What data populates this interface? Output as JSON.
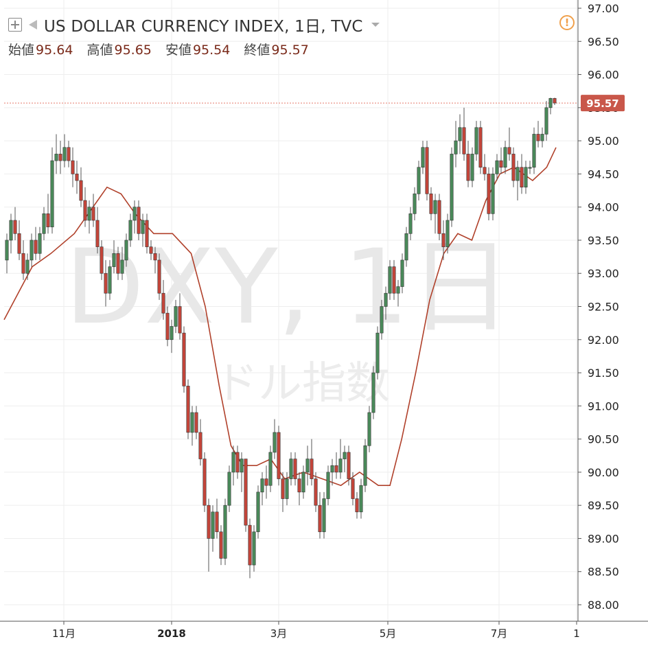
{
  "header": {
    "title": "US DOLLAR CURRENCY INDEX, 1日, TVC",
    "ohlc": [
      {
        "label": "始値",
        "value": "95.64"
      },
      {
        "label": "高値",
        "value": "95.65"
      },
      {
        "label": "安値",
        "value": "95.54"
      },
      {
        "label": "終値",
        "value": "95.57"
      }
    ],
    "alert_glyph": "!"
  },
  "watermark": {
    "symbol": "DXY, 1日",
    "description": "ドル指数"
  },
  "last_price_label": "95.57",
  "colors": {
    "up": "#4a8a5a",
    "down": "#c4453a",
    "ma": "#b0402a",
    "price_line": "#e57a6a",
    "price_label_bg": "#c9574a"
  },
  "chart_data": {
    "type": "candlestick",
    "ylim": [
      88.0,
      97.0
    ],
    "yticks": [
      "88.00",
      "88.50",
      "89.00",
      "89.50",
      "90.00",
      "90.50",
      "91.00",
      "91.50",
      "92.00",
      "92.50",
      "93.00",
      "93.50",
      "94.00",
      "94.50",
      "95.00",
      "95.50",
      "96.00",
      "96.50",
      "97.00"
    ],
    "xticks": [
      {
        "label": "11月",
        "bold": false
      },
      {
        "label": "2018",
        "bold": true
      },
      {
        "label": "3月",
        "bold": false
      },
      {
        "label": "5月",
        "bold": false
      },
      {
        "label": "7月",
        "bold": false
      },
      {
        "label": "1",
        "bold": false
      }
    ],
    "last_price": 95.57,
    "ma_path": [
      [
        92.3,
        0
      ],
      [
        92.7,
        6
      ],
      [
        93.1,
        12
      ],
      [
        93.3,
        20
      ],
      [
        93.6,
        30
      ],
      [
        94.1,
        40
      ],
      [
        94.3,
        44
      ],
      [
        94.2,
        50
      ],
      [
        93.9,
        56
      ],
      [
        93.6,
        64
      ],
      [
        93.6,
        72
      ],
      [
        93.3,
        80
      ],
      [
        92.5,
        86
      ],
      [
        91.3,
        92
      ],
      [
        90.4,
        97
      ],
      [
        90.1,
        102
      ],
      [
        90.1,
        108
      ],
      [
        90.2,
        114
      ],
      [
        89.9,
        120
      ],
      [
        90.0,
        128
      ],
      [
        89.9,
        136
      ],
      [
        89.8,
        144
      ],
      [
        90.0,
        152
      ],
      [
        89.8,
        160
      ],
      [
        89.8,
        165
      ],
      [
        90.5,
        170
      ],
      [
        91.5,
        176
      ],
      [
        92.6,
        182
      ],
      [
        93.3,
        188
      ],
      [
        93.6,
        194
      ],
      [
        93.5,
        200
      ],
      [
        94.1,
        206
      ],
      [
        94.5,
        212
      ],
      [
        94.6,
        218
      ],
      [
        94.4,
        226
      ],
      [
        94.6,
        232
      ],
      [
        94.9,
        236
      ]
    ],
    "candles": [
      {
        "o": 93.2,
        "h": 93.6,
        "l": 93.0,
        "c": 93.5
      },
      {
        "o": 93.5,
        "h": 93.9,
        "l": 93.3,
        "c": 93.8
      },
      {
        "o": 93.8,
        "h": 94.0,
        "l": 93.5,
        "c": 93.6
      },
      {
        "o": 93.6,
        "h": 93.8,
        "l": 93.2,
        "c": 93.3
      },
      {
        "o": 93.3,
        "h": 93.5,
        "l": 92.9,
        "c": 93.0
      },
      {
        "o": 93.0,
        "h": 93.3,
        "l": 92.9,
        "c": 93.2
      },
      {
        "o": 93.2,
        "h": 93.6,
        "l": 93.1,
        "c": 93.5
      },
      {
        "o": 93.5,
        "h": 93.7,
        "l": 93.2,
        "c": 93.3
      },
      {
        "o": 93.3,
        "h": 93.7,
        "l": 93.2,
        "c": 93.6
      },
      {
        "o": 93.6,
        "h": 94.0,
        "l": 93.5,
        "c": 93.9
      },
      {
        "o": 93.9,
        "h": 94.2,
        "l": 93.6,
        "c": 93.7
      },
      {
        "o": 93.7,
        "h": 94.9,
        "l": 93.6,
        "c": 94.7
      },
      {
        "o": 94.7,
        "h": 95.1,
        "l": 94.5,
        "c": 94.8
      },
      {
        "o": 94.8,
        "h": 95.0,
        "l": 94.5,
        "c": 94.7
      },
      {
        "o": 94.7,
        "h": 95.1,
        "l": 94.6,
        "c": 94.9
      },
      {
        "o": 94.9,
        "h": 95.0,
        "l": 94.6,
        "c": 94.7
      },
      {
        "o": 94.7,
        "h": 94.9,
        "l": 94.3,
        "c": 94.5
      },
      {
        "o": 94.5,
        "h": 94.7,
        "l": 94.2,
        "c": 94.4
      },
      {
        "o": 94.4,
        "h": 94.6,
        "l": 94.0,
        "c": 94.1
      },
      {
        "o": 94.1,
        "h": 94.3,
        "l": 93.7,
        "c": 93.8
      },
      {
        "o": 93.8,
        "h": 94.1,
        "l": 93.6,
        "c": 94.0
      },
      {
        "o": 94.0,
        "h": 94.2,
        "l": 93.7,
        "c": 93.8
      },
      {
        "o": 93.8,
        "h": 94.0,
        "l": 93.3,
        "c": 93.4
      },
      {
        "o": 93.4,
        "h": 93.5,
        "l": 92.9,
        "c": 93.0
      },
      {
        "o": 93.0,
        "h": 93.2,
        "l": 92.5,
        "c": 92.7
      },
      {
        "o": 92.7,
        "h": 93.2,
        "l": 92.6,
        "c": 93.1
      },
      {
        "o": 93.1,
        "h": 93.5,
        "l": 93.0,
        "c": 93.3
      },
      {
        "o": 93.3,
        "h": 93.4,
        "l": 92.9,
        "c": 93.0
      },
      {
        "o": 93.0,
        "h": 93.4,
        "l": 92.9,
        "c": 93.2
      },
      {
        "o": 93.2,
        "h": 93.6,
        "l": 93.1,
        "c": 93.5
      },
      {
        "o": 93.5,
        "h": 93.9,
        "l": 93.4,
        "c": 93.8
      },
      {
        "o": 93.8,
        "h": 94.1,
        "l": 93.6,
        "c": 94.0
      },
      {
        "o": 94.0,
        "h": 94.1,
        "l": 93.5,
        "c": 93.6
      },
      {
        "o": 93.6,
        "h": 93.9,
        "l": 93.4,
        "c": 93.8
      },
      {
        "o": 93.8,
        "h": 93.9,
        "l": 93.3,
        "c": 93.4
      },
      {
        "o": 93.4,
        "h": 93.5,
        "l": 93.2,
        "c": 93.3
      },
      {
        "o": 93.3,
        "h": 93.4,
        "l": 93.0,
        "c": 93.2
      },
      {
        "o": 93.2,
        "h": 93.3,
        "l": 92.6,
        "c": 92.7
      },
      {
        "o": 92.7,
        "h": 92.9,
        "l": 92.3,
        "c": 92.4
      },
      {
        "o": 92.4,
        "h": 92.5,
        "l": 91.9,
        "c": 92.0
      },
      {
        "o": 92.0,
        "h": 92.3,
        "l": 91.8,
        "c": 92.2
      },
      {
        "o": 92.2,
        "h": 92.6,
        "l": 92.1,
        "c": 92.5
      },
      {
        "o": 92.5,
        "h": 92.7,
        "l": 92.0,
        "c": 92.1
      },
      {
        "o": 92.1,
        "h": 92.2,
        "l": 91.2,
        "c": 91.3
      },
      {
        "o": 91.3,
        "h": 91.4,
        "l": 90.5,
        "c": 90.6
      },
      {
        "o": 90.6,
        "h": 91.0,
        "l": 90.4,
        "c": 90.9
      },
      {
        "o": 90.9,
        "h": 91.0,
        "l": 90.5,
        "c": 90.6
      },
      {
        "o": 90.6,
        "h": 90.8,
        "l": 90.1,
        "c": 90.2
      },
      {
        "o": 90.2,
        "h": 90.3,
        "l": 89.4,
        "c": 89.5
      },
      {
        "o": 89.5,
        "h": 89.6,
        "l": 88.5,
        "c": 89.0
      },
      {
        "o": 89.0,
        "h": 89.5,
        "l": 88.8,
        "c": 89.4
      },
      {
        "o": 89.4,
        "h": 89.6,
        "l": 89.0,
        "c": 89.1
      },
      {
        "o": 89.1,
        "h": 89.2,
        "l": 88.6,
        "c": 88.7
      },
      {
        "o": 88.7,
        "h": 89.6,
        "l": 88.6,
        "c": 89.5
      },
      {
        "o": 89.5,
        "h": 90.1,
        "l": 89.4,
        "c": 90.0
      },
      {
        "o": 90.0,
        "h": 90.4,
        "l": 89.8,
        "c": 90.3
      },
      {
        "o": 90.3,
        "h": 90.4,
        "l": 89.9,
        "c": 90.0
      },
      {
        "o": 90.0,
        "h": 90.3,
        "l": 89.7,
        "c": 90.2
      },
      {
        "o": 90.2,
        "h": 90.2,
        "l": 89.1,
        "c": 89.2
      },
      {
        "o": 89.2,
        "h": 89.3,
        "l": 88.4,
        "c": 88.6
      },
      {
        "o": 88.6,
        "h": 89.2,
        "l": 88.5,
        "c": 89.1
      },
      {
        "o": 89.1,
        "h": 89.8,
        "l": 89.0,
        "c": 89.7
      },
      {
        "o": 89.7,
        "h": 90.0,
        "l": 89.5,
        "c": 89.9
      },
      {
        "o": 89.9,
        "h": 90.1,
        "l": 89.6,
        "c": 89.8
      },
      {
        "o": 89.8,
        "h": 90.4,
        "l": 89.7,
        "c": 90.3
      },
      {
        "o": 90.3,
        "h": 90.8,
        "l": 90.2,
        "c": 90.6
      },
      {
        "o": 90.6,
        "h": 90.7,
        "l": 89.8,
        "c": 89.9
      },
      {
        "o": 89.9,
        "h": 90.0,
        "l": 89.4,
        "c": 89.6
      },
      {
        "o": 89.6,
        "h": 90.0,
        "l": 89.5,
        "c": 89.9
      },
      {
        "o": 89.9,
        "h": 90.3,
        "l": 89.8,
        "c": 90.2
      },
      {
        "o": 90.2,
        "h": 90.3,
        "l": 89.8,
        "c": 89.9
      },
      {
        "o": 89.9,
        "h": 90.0,
        "l": 89.5,
        "c": 89.7
      },
      {
        "o": 89.7,
        "h": 90.1,
        "l": 89.6,
        "c": 90.0
      },
      {
        "o": 90.0,
        "h": 90.4,
        "l": 89.8,
        "c": 90.2
      },
      {
        "o": 90.2,
        "h": 90.5,
        "l": 89.8,
        "c": 89.9
      },
      {
        "o": 89.9,
        "h": 90.0,
        "l": 89.4,
        "c": 89.5
      },
      {
        "o": 89.5,
        "h": 89.7,
        "l": 89.0,
        "c": 89.1
      },
      {
        "o": 89.1,
        "h": 89.7,
        "l": 89.0,
        "c": 89.6
      },
      {
        "o": 89.6,
        "h": 90.1,
        "l": 89.5,
        "c": 90.0
      },
      {
        "o": 90.0,
        "h": 90.2,
        "l": 89.8,
        "c": 90.1
      },
      {
        "o": 90.1,
        "h": 90.3,
        "l": 89.9,
        "c": 90.0
      },
      {
        "o": 90.0,
        "h": 90.5,
        "l": 89.9,
        "c": 90.2
      },
      {
        "o": 90.2,
        "h": 90.4,
        "l": 90.0,
        "c": 90.3
      },
      {
        "o": 90.3,
        "h": 90.4,
        "l": 89.8,
        "c": 89.9
      },
      {
        "o": 89.9,
        "h": 90.0,
        "l": 89.5,
        "c": 89.6
      },
      {
        "o": 89.6,
        "h": 89.7,
        "l": 89.3,
        "c": 89.4
      },
      {
        "o": 89.4,
        "h": 89.9,
        "l": 89.3,
        "c": 89.8
      },
      {
        "o": 89.8,
        "h": 90.5,
        "l": 89.7,
        "c": 90.4
      },
      {
        "o": 90.4,
        "h": 91.0,
        "l": 90.3,
        "c": 90.9
      },
      {
        "o": 90.9,
        "h": 91.6,
        "l": 90.8,
        "c": 91.5
      },
      {
        "o": 91.5,
        "h": 92.2,
        "l": 91.4,
        "c": 92.1
      },
      {
        "o": 92.1,
        "h": 92.6,
        "l": 92.0,
        "c": 92.5
      },
      {
        "o": 92.5,
        "h": 92.8,
        "l": 92.3,
        "c": 92.7
      },
      {
        "o": 92.7,
        "h": 93.2,
        "l": 92.6,
        "c": 93.1
      },
      {
        "o": 93.1,
        "h": 93.2,
        "l": 92.6,
        "c": 92.7
      },
      {
        "o": 92.7,
        "h": 92.9,
        "l": 92.5,
        "c": 92.8
      },
      {
        "o": 92.8,
        "h": 93.3,
        "l": 92.7,
        "c": 93.2
      },
      {
        "o": 93.2,
        "h": 93.7,
        "l": 93.1,
        "c": 93.6
      },
      {
        "o": 93.6,
        "h": 94.0,
        "l": 93.5,
        "c": 93.9
      },
      {
        "o": 93.9,
        "h": 94.3,
        "l": 93.8,
        "c": 94.2
      },
      {
        "o": 94.2,
        "h": 94.7,
        "l": 94.1,
        "c": 94.6
      },
      {
        "o": 94.6,
        "h": 95.0,
        "l": 94.5,
        "c": 94.9
      },
      {
        "o": 94.9,
        "h": 95.0,
        "l": 94.1,
        "c": 94.2
      },
      {
        "o": 94.2,
        "h": 94.3,
        "l": 93.8,
        "c": 93.9
      },
      {
        "o": 93.9,
        "h": 94.2,
        "l": 93.6,
        "c": 94.1
      },
      {
        "o": 94.1,
        "h": 94.2,
        "l": 93.5,
        "c": 93.6
      },
      {
        "o": 93.6,
        "h": 93.8,
        "l": 93.2,
        "c": 93.4
      },
      {
        "o": 93.4,
        "h": 93.9,
        "l": 93.3,
        "c": 93.8
      },
      {
        "o": 93.8,
        "h": 94.9,
        "l": 93.7,
        "c": 94.8
      },
      {
        "o": 94.8,
        "h": 95.3,
        "l": 94.6,
        "c": 95.0
      },
      {
        "o": 95.0,
        "h": 95.4,
        "l": 94.8,
        "c": 95.2
      },
      {
        "o": 95.2,
        "h": 95.5,
        "l": 94.7,
        "c": 94.8
      },
      {
        "o": 94.8,
        "h": 95.0,
        "l": 94.3,
        "c": 94.4
      },
      {
        "o": 94.4,
        "h": 94.9,
        "l": 94.3,
        "c": 94.8
      },
      {
        "o": 94.8,
        "h": 95.3,
        "l": 94.7,
        "c": 95.2
      },
      {
        "o": 95.2,
        "h": 95.3,
        "l": 94.5,
        "c": 94.6
      },
      {
        "o": 94.6,
        "h": 94.8,
        "l": 94.4,
        "c": 94.5
      },
      {
        "o": 94.5,
        "h": 94.6,
        "l": 93.8,
        "c": 93.9
      },
      {
        "o": 93.9,
        "h": 94.6,
        "l": 93.8,
        "c": 94.5
      },
      {
        "o": 94.5,
        "h": 94.8,
        "l": 94.4,
        "c": 94.7
      },
      {
        "o": 94.7,
        "h": 94.9,
        "l": 94.5,
        "c": 94.6
      },
      {
        "o": 94.6,
        "h": 95.0,
        "l": 94.5,
        "c": 94.9
      },
      {
        "o": 94.9,
        "h": 95.2,
        "l": 94.7,
        "c": 94.8
      },
      {
        "o": 94.8,
        "h": 94.9,
        "l": 94.3,
        "c": 94.4
      },
      {
        "o": 94.4,
        "h": 94.7,
        "l": 94.1,
        "c": 94.6
      },
      {
        "o": 94.6,
        "h": 94.8,
        "l": 94.2,
        "c": 94.3
      },
      {
        "o": 94.3,
        "h": 94.7,
        "l": 94.2,
        "c": 94.6
      },
      {
        "o": 94.6,
        "h": 94.7,
        "l": 94.5,
        "c": 94.6
      },
      {
        "o": 94.6,
        "h": 95.2,
        "l": 94.5,
        "c": 95.1
      },
      {
        "o": 95.1,
        "h": 95.3,
        "l": 94.9,
        "c": 95.0
      },
      {
        "o": 95.0,
        "h": 95.2,
        "l": 94.9,
        "c": 95.1
      },
      {
        "o": 95.1,
        "h": 95.6,
        "l": 95.0,
        "c": 95.5
      },
      {
        "o": 95.5,
        "h": 95.65,
        "l": 95.4,
        "c": 95.64
      },
      {
        "o": 95.64,
        "h": 95.65,
        "l": 95.54,
        "c": 95.57
      }
    ]
  }
}
